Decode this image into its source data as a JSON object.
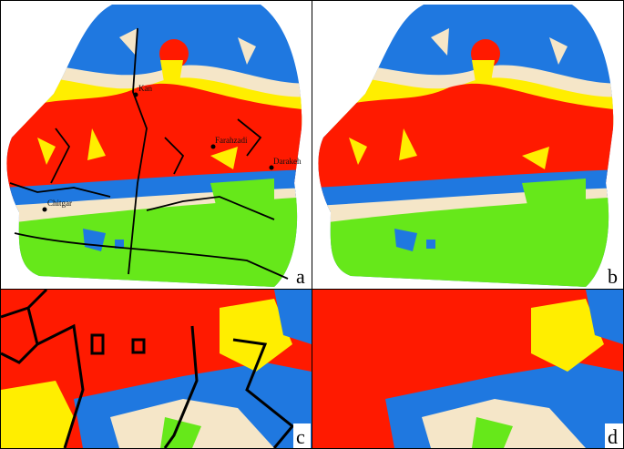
{
  "panels": [
    {
      "label": "a"
    },
    {
      "label": "b"
    },
    {
      "label": "c"
    },
    {
      "label": "d"
    }
  ],
  "places": [
    {
      "name": "Kan"
    },
    {
      "name": "Farahzadi"
    },
    {
      "name": "Darakeh"
    },
    {
      "name": "Chitgar"
    }
  ]
}
